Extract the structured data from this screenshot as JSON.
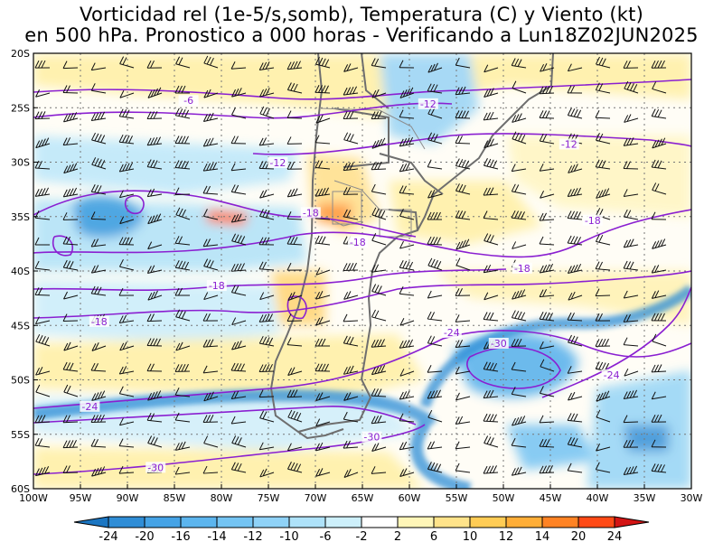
{
  "title": {
    "line1": "Vorticidad rel (1e-5/s,somb), Temperatura (C) y Viento (kt)",
    "line2": "en 500 hPa. Pronostico a 000 horas - Verificando a Lun18Z02JUN2025"
  },
  "map": {
    "lon_range": [
      -100,
      -30
    ],
    "lat_range": [
      -60,
      -20
    ],
    "lat_labels": [
      "20S",
      "25S",
      "30S",
      "35S",
      "40S",
      "45S",
      "50S",
      "55S",
      "60S"
    ],
    "lon_labels": [
      "100W",
      "95W",
      "90W",
      "85W",
      "80W",
      "75W",
      "70W",
      "65W",
      "60W",
      "55W",
      "50W",
      "45W",
      "40W",
      "35W",
      "30W"
    ],
    "grid": "dotted",
    "coastline_color": "#6e6e6e"
  },
  "temperature_contours": {
    "color": "#8a1fd1",
    "labels": [
      {
        "text": "-6",
        "lon": -83.5,
        "lat": -24.5
      },
      {
        "text": "-12",
        "lon": -74.0,
        "lat": -30.2
      },
      {
        "text": "-12",
        "lon": -58.0,
        "lat": -24.8
      },
      {
        "text": "-12",
        "lon": -43.0,
        "lat": -28.5
      },
      {
        "text": "-18",
        "lon": -70.5,
        "lat": -34.8
      },
      {
        "text": "-18",
        "lon": -65.5,
        "lat": -37.5
      },
      {
        "text": "-18",
        "lon": -40.5,
        "lat": -35.5
      },
      {
        "text": "-18",
        "lon": -48.0,
        "lat": -39.9
      },
      {
        "text": "-18",
        "lon": -80.5,
        "lat": -41.5
      },
      {
        "text": "-18",
        "lon": -93.0,
        "lat": -44.8
      },
      {
        "text": "-24",
        "lon": -55.5,
        "lat": -45.8
      },
      {
        "text": "-24",
        "lon": -38.5,
        "lat": -49.7
      },
      {
        "text": "-24",
        "lon": -94.0,
        "lat": -52.6
      },
      {
        "text": "-30",
        "lon": -50.5,
        "lat": -46.8
      },
      {
        "text": "-30",
        "lon": -64.0,
        "lat": -55.4
      },
      {
        "text": "-30",
        "lon": -87.0,
        "lat": -58.2
      }
    ]
  },
  "colorbar": {
    "labels": [
      "-24",
      "-20",
      "-16",
      "-14",
      "-12",
      "-10",
      "-6",
      "-2",
      "2",
      "6",
      "10",
      "12",
      "14",
      "20",
      "24"
    ],
    "colors": [
      "#1b76c2",
      "#2f8dd6",
      "#45a3e6",
      "#5cb5ee",
      "#74c4f3",
      "#8fd2f7",
      "#aee2f9",
      "#cdf0fb",
      "#ffffff",
      "#fff6b8",
      "#ffe38a",
      "#ffcc55",
      "#ffae38",
      "#ff8324",
      "#ff4a16",
      "#d31414"
    ]
  }
}
